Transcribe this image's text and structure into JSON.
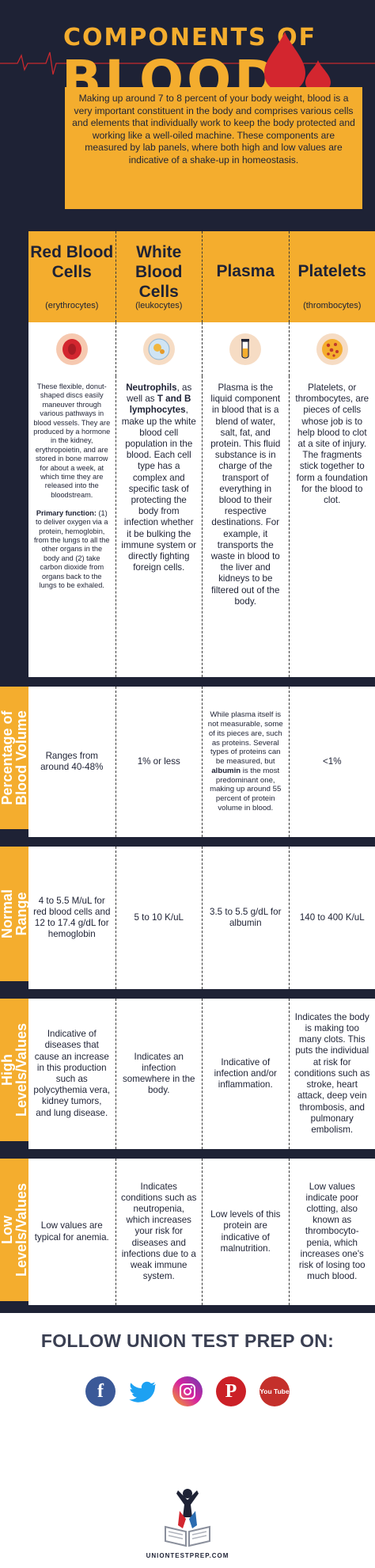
{
  "header": {
    "title_top": "COMPONENTS OF",
    "title_main": "BLOOD",
    "intro": "Making up around 7 to 8 percent of your body weight, blood is a very important constituent in the body and comprises various cells and elements that individually work to keep the body protected and working like a well-oiled machine. These components are measured by lab panels, where both high and low values are indicative of a shake-up in homeostasis."
  },
  "columns": [
    {
      "title": "Red Blood Cells",
      "subtitle": "(erythrocytes)",
      "icon": "red-blood-cell-icon"
    },
    {
      "title": "White Blood Cells",
      "subtitle": "(leukocytes)",
      "icon": "white-blood-cell-icon"
    },
    {
      "title": "Plasma",
      "subtitle": "",
      "icon": "test-tube-icon"
    },
    {
      "title": "Platelets",
      "subtitle": "(thrombocytes)",
      "icon": "platelets-icon"
    }
  ],
  "descriptions": {
    "rbc_text": "These flexible, donut-shaped discs easily maneuver through various pathways in blood vessels. They are produced by a hormone in the kidney, erythropoietin, and are stored in bone marrow for about a week, at which time they are released into the bloodstream.",
    "rbc_function_label": "Primary function:",
    "rbc_function_text": " (1) to deliver oxygen via a protein, hemoglobin, from the lungs to all the other organs in the body and (2) take carbon dioxide from organs back to the lungs to be exhaled.",
    "wbc_bold_1": "Neutrophils",
    "wbc_text_1": ", as well as ",
    "wbc_bold_2": "T and B lymphocytes",
    "wbc_text_2": ", make up the white blood cell population in the blood. Each cell type has a complex and specific task of protecting the body from infection whether it be bulking the immune system or directly fighting foreign cells.",
    "plasma_text": "Plasma is the liquid component in blood that is a blend of water, salt, fat, and protein. This fluid substance is in charge of the transport of everything in blood to their respective destinations. For example, it transports the waste in blood to the liver and kidneys to be filtered out of the body.",
    "platelets_text": "Platelets, or thrombocytes, are pieces of cells whose job is to help blood to clot at a site of injury. The fragments stick together to form a foundation for the blood to clot."
  },
  "rows": {
    "percentage": {
      "label_line1": "Percentage of",
      "label_line2": "Blood Volume",
      "rbc": "Ranges from around 40-48%",
      "wbc": "1% or less",
      "plasma_pre": "While plasma itself is not measurable, some of its pieces are, such as proteins. Several types of proteins can be measured, but ",
      "plasma_bold": "albumin",
      "plasma_post": " is the most predominant one, making up around 55 percent of protein volume in blood.",
      "platelets": "<1%"
    },
    "normal": {
      "label_line1": "Normal",
      "label_line2": "Range",
      "rbc": "4 to 5.5 M/uL for red blood cells and 12 to 17.4 g/dL for hemoglobin",
      "wbc": "5 to 10 K/uL",
      "plasma": "3.5 to 5.5 g/dL for albumin",
      "platelets": "140 to 400 K/uL"
    },
    "high": {
      "label_line1": "High",
      "label_line2": "Levels/Values",
      "rbc": "Indicative of diseases that cause an increase in this production such as polycythemia vera, kidney tumors, and lung disease.",
      "wbc": "Indicates an infection somewhere in the body.",
      "plasma": "Indicative of infection and/or inflammation.",
      "platelets": "Indicates the body is making too many clots. This puts the individual at risk for conditions such as stroke, heart attack, deep vein thrombosis, and pulmonary embolism."
    },
    "low": {
      "label_line1": "Low",
      "label_line2": "Levels/Values",
      "rbc": "Low values are typical for anemia.",
      "wbc": "Indicates conditions such as neutropenia, which increases your risk for diseases and infections due to a weak immune system.",
      "plasma": "Low levels of this protein are indicative of malnutrition.",
      "platelets": "Low values indicate poor clotting, also known as thrombocyto-penia, which increases one's risk of losing too much blood."
    }
  },
  "footer": {
    "follow": "FOLLOW UNION TEST PREP ON:",
    "socials": [
      "facebook-icon",
      "twitter-icon",
      "instagram-icon",
      "pinterest-icon",
      "youtube-icon"
    ],
    "youtube_label": "You Tube",
    "url": "UNIONTESTPREP.COM"
  },
  "colors": {
    "navy": "#1e2235",
    "yellow": "#f4ad2e",
    "red": "#d3262f"
  }
}
